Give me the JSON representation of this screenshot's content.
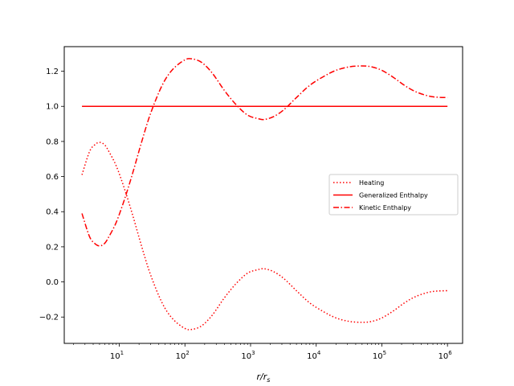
{
  "chart_data": {
    "type": "line",
    "title": "",
    "xlabel": "r/r_s",
    "ylabel": "",
    "xscale": "log",
    "xlim": [
      1.45,
      1700000
    ],
    "ylim": [
      -0.35,
      1.34
    ],
    "grid": false,
    "legend_position": "center-right",
    "xticks": [
      {
        "value": 10,
        "label": "10",
        "exp": "1"
      },
      {
        "value": 100,
        "label": "10",
        "exp": "2"
      },
      {
        "value": 1000,
        "label": "10",
        "exp": "3"
      },
      {
        "value": 10000,
        "label": "10",
        "exp": "4"
      },
      {
        "value": 100000,
        "label": "10",
        "exp": "5"
      },
      {
        "value": 1000000,
        "label": "10",
        "exp": "6"
      }
    ],
    "yticks": [
      {
        "value": -0.2,
        "label": "−0.2"
      },
      {
        "value": 0.0,
        "label": "0.0"
      },
      {
        "value": 0.2,
        "label": "0.2"
      },
      {
        "value": 0.4,
        "label": "0.4"
      },
      {
        "value": 0.6,
        "label": "0.6"
      },
      {
        "value": 0.8,
        "label": "0.8"
      },
      {
        "value": 1.0,
        "label": "1.0"
      },
      {
        "value": 1.2,
        "label": "1.2"
      }
    ],
    "series": [
      {
        "name": "Heating",
        "color": "#ff0000",
        "linestyle": "dotted",
        "x": [
          2.7,
          3.5,
          4.2,
          5,
          6,
          7,
          9,
          12,
          16,
          22,
          30,
          45,
          65,
          100,
          130,
          180,
          260,
          400,
          600,
          900,
          1300,
          1600,
          2200,
          3200,
          5000,
          8000,
          13000,
          20000,
          32000,
          50000,
          70000,
          100000,
          150000,
          220000,
          320000,
          500000,
          700000,
          1000000
        ],
        "y": [
          0.61,
          0.74,
          0.78,
          0.795,
          0.78,
          0.74,
          0.66,
          0.53,
          0.38,
          0.2,
          0.04,
          -0.12,
          -0.21,
          -0.265,
          -0.27,
          -0.25,
          -0.19,
          -0.09,
          -0.01,
          0.05,
          0.07,
          0.075,
          0.06,
          0.02,
          -0.05,
          -0.12,
          -0.17,
          -0.205,
          -0.225,
          -0.23,
          -0.225,
          -0.205,
          -0.165,
          -0.12,
          -0.085,
          -0.06,
          -0.052,
          -0.05
        ]
      },
      {
        "name": "Generalized Enthalpy",
        "color": "#ff0000",
        "linestyle": "solid",
        "x": [
          2.7,
          1000000
        ],
        "y": [
          1.0,
          1.0
        ]
      },
      {
        "name": "Kinetic Enthalpy",
        "color": "#ff0000",
        "linestyle": "dashdot",
        "x": [
          2.7,
          3.5,
          4.2,
          5,
          6,
          7,
          9,
          12,
          16,
          22,
          30,
          45,
          65,
          100,
          130,
          180,
          260,
          400,
          600,
          900,
          1300,
          1600,
          2200,
          3200,
          5000,
          8000,
          13000,
          20000,
          32000,
          50000,
          70000,
          100000,
          150000,
          220000,
          320000,
          500000,
          700000,
          1000000
        ],
        "y": [
          0.39,
          0.26,
          0.22,
          0.205,
          0.22,
          0.26,
          0.34,
          0.47,
          0.62,
          0.8,
          0.96,
          1.12,
          1.21,
          1.265,
          1.27,
          1.25,
          1.19,
          1.09,
          1.01,
          0.95,
          0.93,
          0.925,
          0.94,
          0.98,
          1.05,
          1.12,
          1.17,
          1.205,
          1.225,
          1.23,
          1.225,
          1.205,
          1.165,
          1.12,
          1.085,
          1.06,
          1.052,
          1.05
        ]
      }
    ]
  }
}
